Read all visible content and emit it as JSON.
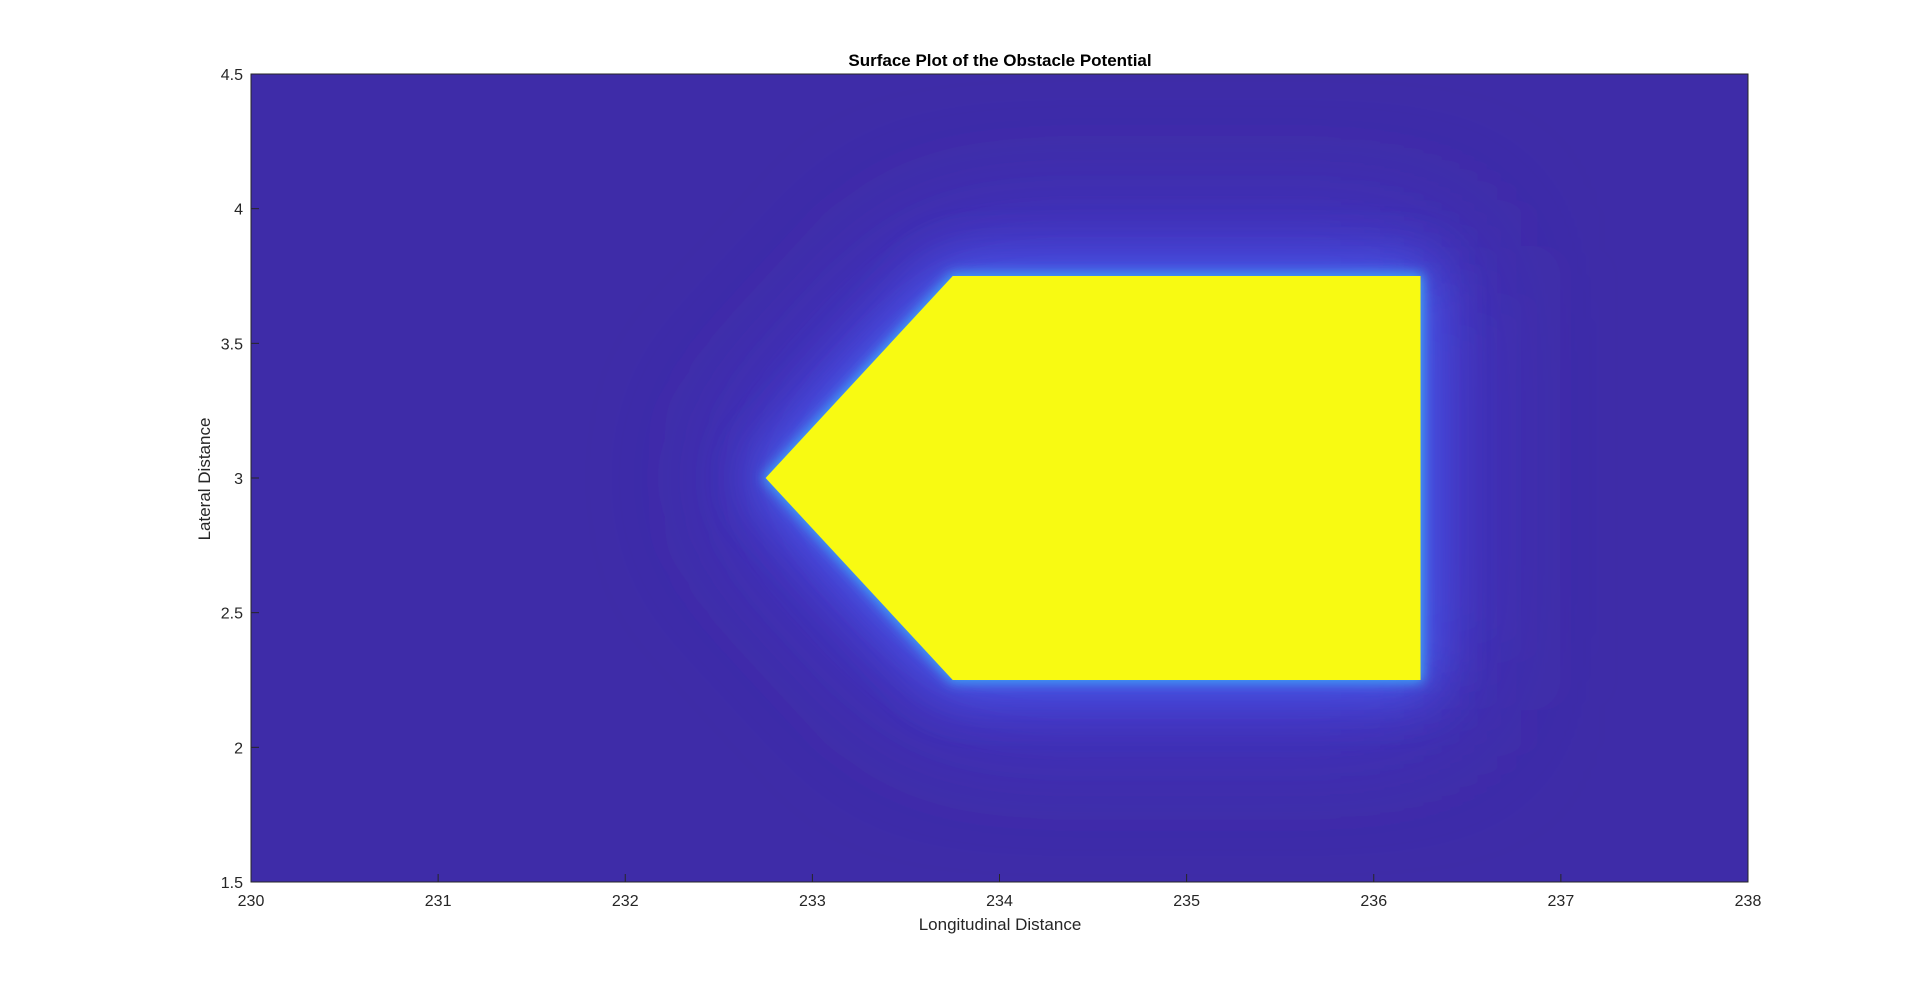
{
  "chart_data": {
    "type": "heatmap",
    "title": "Surface Plot of the Obstacle Potential",
    "xlabel": "Longitudinal Distance",
    "ylabel": "Lateral Distance",
    "xlim": [
      230,
      238
    ],
    "ylim": [
      1.5,
      4.5
    ],
    "xticks": [
      "230",
      "231",
      "232",
      "233",
      "234",
      "235",
      "236",
      "237",
      "238"
    ],
    "yticks": [
      "1.5",
      "2",
      "2.5",
      "3",
      "3.5",
      "4",
      "4.5"
    ],
    "obstacle_polygon": [
      [
        233.75,
        3.75
      ],
      [
        236.25,
        3.75
      ],
      [
        236.25,
        2.25
      ],
      [
        233.75,
        2.25
      ],
      [
        232.75,
        3.0
      ]
    ],
    "colors": {
      "obstacle": "#f8fa12",
      "edge_glow": "#3ea2f5",
      "near_field": "#4a5ef0",
      "mid_field": "#4438d6",
      "far_field": "#3d2bab",
      "axes_bg": "#3e2ca8"
    },
    "grid": false,
    "legend": "none"
  }
}
